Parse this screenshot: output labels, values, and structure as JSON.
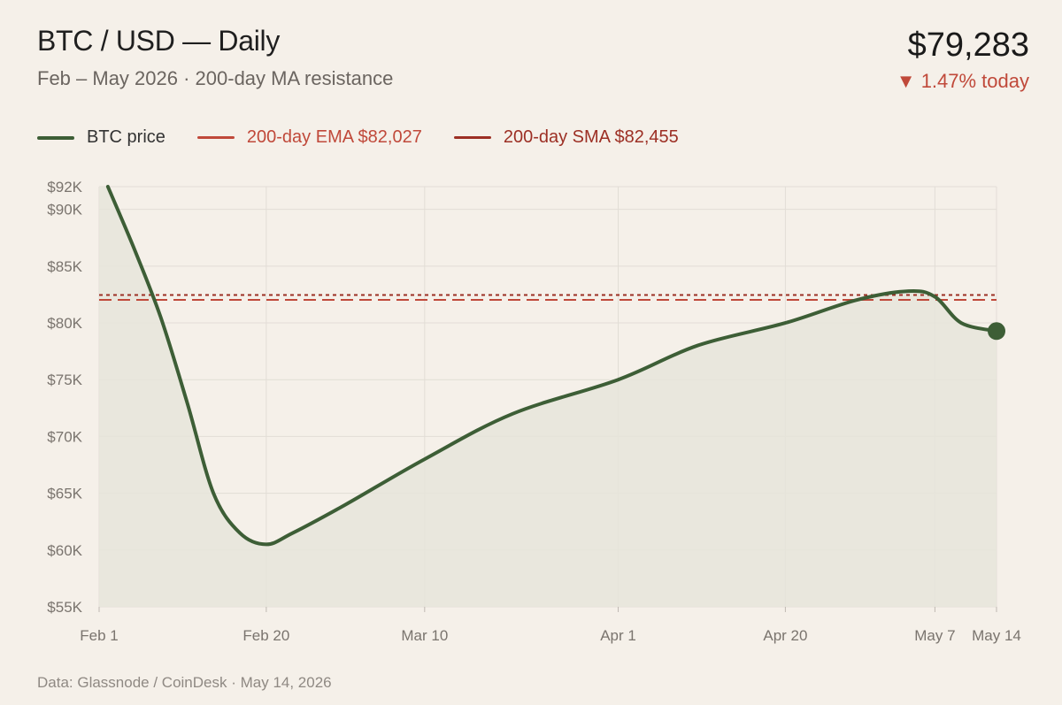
{
  "header": {
    "title": "BTC / USD — Daily",
    "subtitle": "Feb – May 2026 · 200-day MA resistance",
    "price": "$79,283",
    "change_arrow": "▼",
    "change_text": "1.47% today"
  },
  "legend": {
    "btc": "BTC price",
    "ema": "200-day EMA $82,027",
    "sma": "200-day SMA $82,455"
  },
  "colors": {
    "btc": "#3d5e36",
    "ema": "#c0493a",
    "sma": "#9c2f24",
    "down": "#c0493a",
    "fill": "#e6e5da",
    "grid": "#e2ddd6"
  },
  "footer": {
    "source": "Data: Glassnode / CoinDesk · May 14, 2026"
  },
  "chart_data": {
    "type": "line",
    "title": "BTC / USD — Daily",
    "xlabel": "",
    "ylabel": "",
    "x_ticks": [
      "Feb 1",
      "Feb 20",
      "Mar 10",
      "Apr 1",
      "Apr 20",
      "May 7",
      "May 14"
    ],
    "y_ticks": [
      "$55K",
      "$60K",
      "$65K",
      "$70K",
      "$75K",
      "$80K",
      "$85K",
      "$90K",
      "$92K"
    ],
    "y_tick_values": [
      55000,
      60000,
      65000,
      70000,
      75000,
      80000,
      85000,
      90000,
      92000
    ],
    "ylim": [
      55000,
      92000
    ],
    "grid": true,
    "legend_position": "top-left",
    "series": [
      {
        "name": "BTC price",
        "points": [
          {
            "x": "Feb 2",
            "y": 92000
          },
          {
            "x": "Feb 5",
            "y": 86500
          },
          {
            "x": "Feb 8",
            "y": 80500
          },
          {
            "x": "Feb 11",
            "y": 73000
          },
          {
            "x": "Feb 14",
            "y": 65000
          },
          {
            "x": "Feb 17",
            "y": 61500
          },
          {
            "x": "Feb 20",
            "y": 60500
          },
          {
            "x": "Feb 23",
            "y": 61500
          },
          {
            "x": "Mar 1",
            "y": 64000
          },
          {
            "x": "Mar 10",
            "y": 68000
          },
          {
            "x": "Mar 20",
            "y": 72000
          },
          {
            "x": "Apr 1",
            "y": 75000
          },
          {
            "x": "Apr 10",
            "y": 78000
          },
          {
            "x": "Apr 20",
            "y": 80000
          },
          {
            "x": "Apr 28",
            "y": 82000
          },
          {
            "x": "May 4",
            "y": 82800
          },
          {
            "x": "May 7",
            "y": 82300
          },
          {
            "x": "May 10",
            "y": 80000
          },
          {
            "x": "May 14",
            "y": 79283
          }
        ]
      },
      {
        "name": "200-day EMA $82,027",
        "value": 82027
      },
      {
        "name": "200-day SMA $82,455",
        "value": 82455
      }
    ]
  }
}
